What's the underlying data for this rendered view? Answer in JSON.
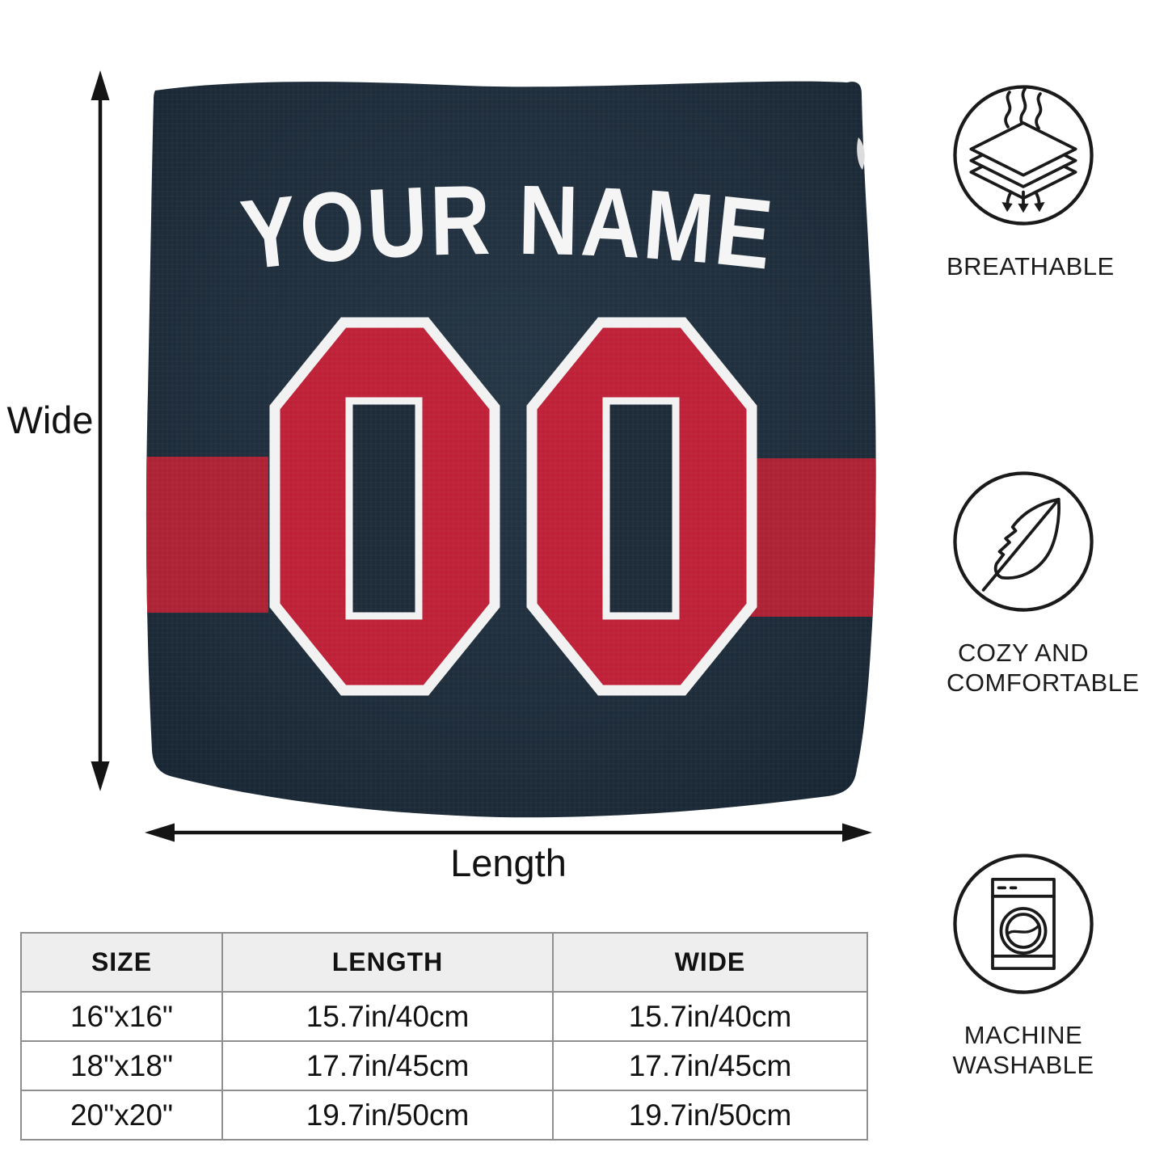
{
  "pillow": {
    "name_text": "YOUR NAME",
    "number": "00",
    "colors": {
      "fabric_navy": "#1E2C3A",
      "stripe_red": "#AD2235",
      "number_red": "#BE2138",
      "outline_white": "#F2F2F2"
    }
  },
  "dimensions": {
    "wide_label": "Wide",
    "length_label": "Length"
  },
  "features": [
    {
      "icon": "breathable-layers-icon",
      "lines": [
        "BREATHABLE"
      ]
    },
    {
      "icon": "feather-icon",
      "lines": [
        "COZY AND",
        "COMFORTABLE"
      ]
    },
    {
      "icon": "washing-machine-icon",
      "lines": [
        "MACHINE",
        "WASHABLE"
      ]
    }
  ],
  "size_table": {
    "headers": [
      "SIZE",
      "LENGTH",
      "WIDE"
    ],
    "rows": [
      [
        "16\"x16\"",
        "15.7in/40cm",
        "15.7in/40cm"
      ],
      [
        "18\"x18\"",
        "17.7in/45cm",
        "17.7in/45cm"
      ],
      [
        "20\"x20\"",
        "19.7in/50cm",
        "19.7in/50cm"
      ]
    ]
  }
}
